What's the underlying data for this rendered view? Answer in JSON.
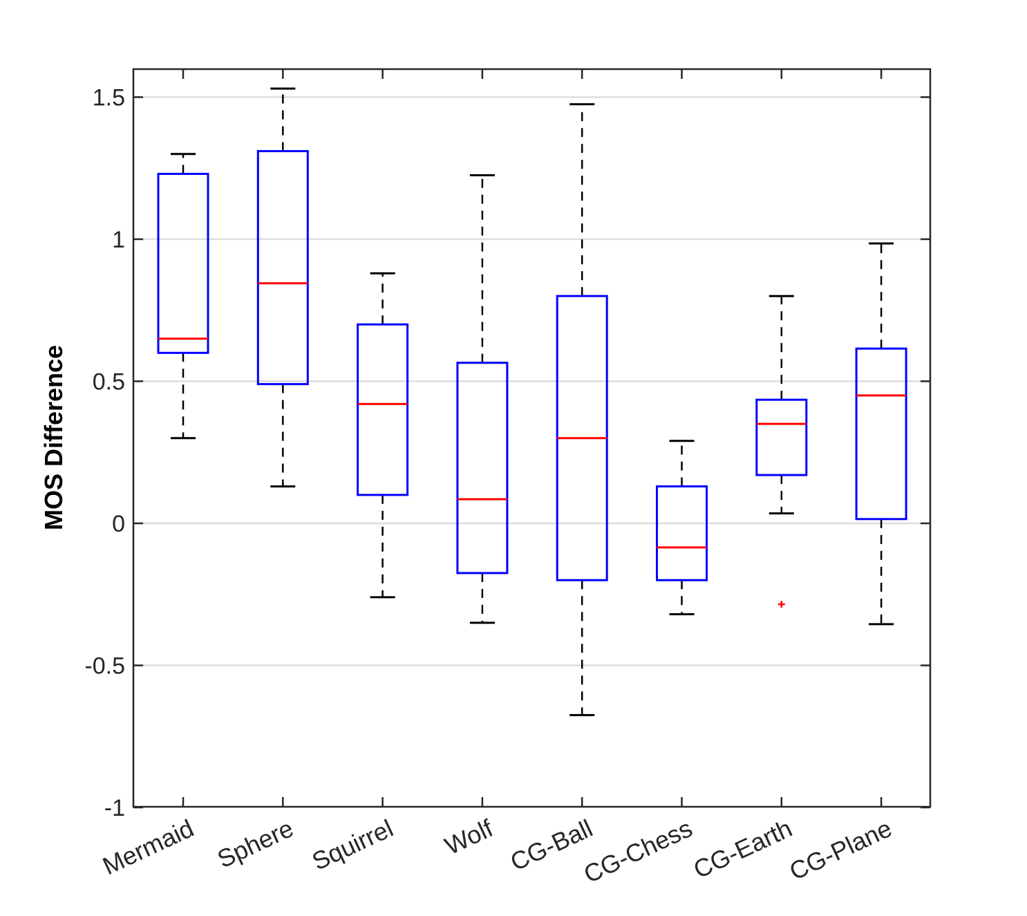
{
  "chart_data": {
    "type": "boxplot",
    "title": "",
    "xlabel": "",
    "ylabel": "MOS Difference",
    "ylim": [
      -1,
      1.6
    ],
    "yticks": [
      -1,
      -0.5,
      0,
      0.5,
      1,
      1.5
    ],
    "ytick_labels": [
      "-1",
      "-0.5",
      "0",
      "0.5",
      "1",
      "1.5"
    ],
    "grid": "horizontal",
    "categories": [
      "Mermaid",
      "Sphere",
      "Squirrel",
      "Wolf",
      "CG-Ball",
      "CG-Chess",
      "CG-Earth",
      "CG-Plane"
    ],
    "boxes": [
      {
        "name": "Mermaid",
        "whisker_low": 0.3,
        "q1": 0.6,
        "median": 0.65,
        "q3": 1.23,
        "whisker_high": 1.3,
        "outliers": []
      },
      {
        "name": "Sphere",
        "whisker_low": 0.13,
        "q1": 0.49,
        "median": 0.845,
        "q3": 1.31,
        "whisker_high": 1.53,
        "outliers": []
      },
      {
        "name": "Squirrel",
        "whisker_low": -0.26,
        "q1": 0.1,
        "median": 0.42,
        "q3": 0.7,
        "whisker_high": 0.88,
        "outliers": []
      },
      {
        "name": "Wolf",
        "whisker_low": -0.35,
        "q1": -0.175,
        "median": 0.085,
        "q3": 0.565,
        "whisker_high": 1.225,
        "outliers": []
      },
      {
        "name": "CG-Ball",
        "whisker_low": -0.675,
        "q1": -0.2,
        "median": 0.3,
        "q3": 0.8,
        "whisker_high": 1.475,
        "outliers": []
      },
      {
        "name": "CG-Chess",
        "whisker_low": -0.32,
        "q1": -0.2,
        "median": -0.085,
        "q3": 0.13,
        "whisker_high": 0.29,
        "outliers": []
      },
      {
        "name": "CG-Earth",
        "whisker_low": 0.035,
        "q1": 0.17,
        "median": 0.35,
        "q3": 0.435,
        "whisker_high": 0.8,
        "outliers": [
          -0.285
        ]
      },
      {
        "name": "CG-Plane",
        "whisker_low": -0.355,
        "q1": 0.015,
        "median": 0.45,
        "q3": 0.615,
        "whisker_high": 0.985,
        "outliers": []
      }
    ],
    "colors": {
      "box": "#0000ff",
      "median": "#ff0000",
      "whisker": "#000000",
      "outlier": "#ff0000",
      "grid": "#dedede",
      "axes": "#262626"
    }
  }
}
